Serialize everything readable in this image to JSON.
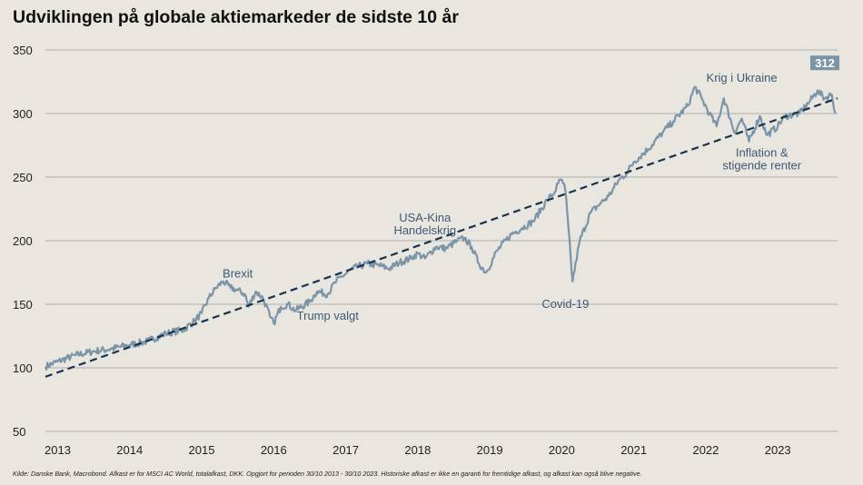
{
  "title": "Udviklingen på globale aktiemarkeder de sidste 10 år",
  "footnote": "Kilde: Danske Bank, Macrobond. Afkast er for MSCI AC World, totalafkast, DKK. Opgjort for perioden  30/10 2013 - 30/10 2023. Historiske afkast er ikke en garanti for fremtidige afkast, og afkast kan også blive negative.",
  "colors": {
    "background": "#e9e5df",
    "line": "#7b95a8",
    "trend": "#163450",
    "annotation": "#3d5a74",
    "grid": "#9c9c9c",
    "badge": "#7b95a8"
  },
  "chart_data": {
    "type": "line",
    "title": "Udviklingen på globale aktiemarkeder de sidste 10 år",
    "xlabel": "",
    "ylabel": "",
    "xlim": [
      2012.83,
      2023.83
    ],
    "ylim": [
      50,
      350
    ],
    "yticks": [
      50,
      100,
      150,
      200,
      250,
      300,
      350
    ],
    "xticks": [
      2013,
      2014,
      2015,
      2016,
      2017,
      2018,
      2019,
      2020,
      2021,
      2022,
      2023
    ],
    "grid": true,
    "series": [
      {
        "name": "MSCI AC World, totalafkast, DKK",
        "x": [
          2012.83,
          2013.0,
          2013.25,
          2013.5,
          2013.75,
          2014.0,
          2014.25,
          2014.5,
          2014.75,
          2014.9,
          2015.0,
          2015.1,
          2015.2,
          2015.3,
          2015.4,
          2015.5,
          2015.6,
          2015.65,
          2015.75,
          2015.85,
          2015.95,
          2016.0,
          2016.1,
          2016.2,
          2016.3,
          2016.5,
          2016.6,
          2016.75,
          2016.85,
          2016.95,
          2017.1,
          2017.3,
          2017.5,
          2017.6,
          2017.75,
          2017.9,
          2018.0,
          2018.1,
          2018.25,
          2018.4,
          2018.55,
          2018.65,
          2018.75,
          2018.85,
          2018.95,
          2019.1,
          2019.3,
          2019.45,
          2019.6,
          2019.8,
          2019.9,
          2019.95,
          2020.0,
          2020.05,
          2020.15,
          2020.25,
          2020.4,
          2020.55,
          2020.65,
          2020.8,
          2020.9,
          2021.0,
          2021.2,
          2021.4,
          2021.55,
          2021.75,
          2021.85,
          2021.95,
          2022.05,
          2022.15,
          2022.25,
          2022.4,
          2022.5,
          2022.6,
          2022.75,
          2022.85,
          2023.0,
          2023.1,
          2023.3,
          2023.45,
          2023.55,
          2023.65,
          2023.75,
          2023.8
        ],
        "values": [
          101,
          105,
          110,
          113,
          115,
          118,
          121,
          127,
          130,
          137,
          143,
          155,
          163,
          168,
          163,
          161,
          158,
          148,
          160,
          155,
          140,
          135,
          148,
          150,
          145,
          152,
          160,
          158,
          167,
          172,
          178,
          182,
          180,
          178,
          183,
          186,
          190,
          186,
          195,
          194,
          200,
          202,
          195,
          182,
          175,
          192,
          205,
          210,
          215,
          232,
          238,
          245,
          248,
          240,
          168,
          200,
          222,
          230,
          235,
          248,
          253,
          262,
          272,
          285,
          294,
          306,
          321,
          311,
          300,
          290,
          312,
          285,
          296,
          278,
          298,
          283,
          290,
          298,
          300,
          310,
          318,
          312,
          315,
          300
        ]
      },
      {
        "name": "Trend",
        "style": "dashed",
        "x": [
          2012.83,
          2023.83
        ],
        "values": [
          93,
          312
        ]
      }
    ],
    "end_label": "312",
    "annotations": [
      {
        "text": "Brexit",
        "x": 2015.5,
        "y": 171
      },
      {
        "text": "Trump valgt",
        "x": 2016.75,
        "y": 138
      },
      {
        "text": "USA-Kina",
        "x": 2018.1,
        "y": 215
      },
      {
        "text": "Handelskrig",
        "x": 2018.1,
        "y": 205
      },
      {
        "text": "Covid-19",
        "x": 2020.05,
        "y": 147
      },
      {
        "text": "Krig i Ukraine",
        "x": 2022.5,
        "y": 325
      },
      {
        "text": "Inflation &",
        "x": 2022.78,
        "y": 266
      },
      {
        "text": "stigende renter",
        "x": 2022.78,
        "y": 256
      }
    ]
  }
}
